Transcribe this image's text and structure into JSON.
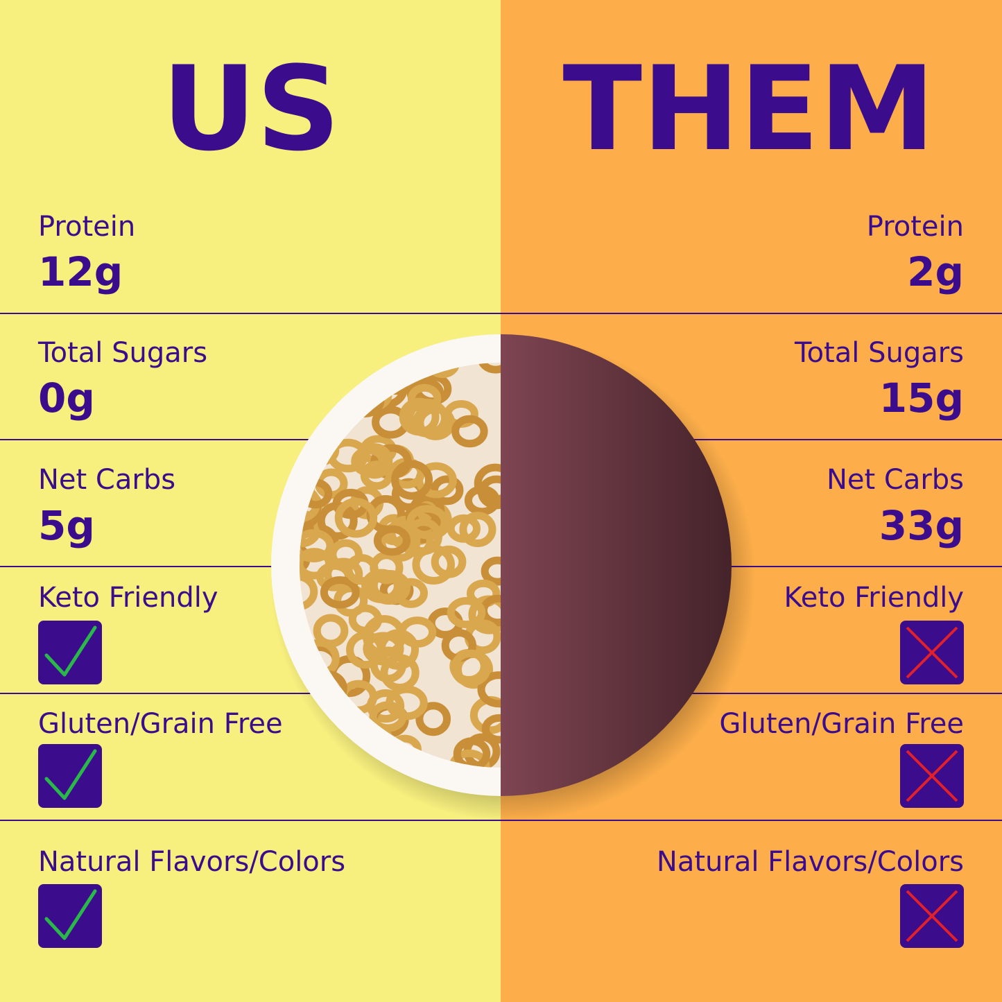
{
  "us": {
    "title": "US",
    "rows": [
      {
        "label": "Protein",
        "value": "12g"
      },
      {
        "label": "Total Sugars",
        "value": "0g"
      },
      {
        "label": "Net Carbs",
        "value": "5g"
      },
      {
        "label": "Keto Friendly"
      },
      {
        "label": "Gluten/Grain Free"
      },
      {
        "label": "Natural Flavors/Colors"
      }
    ]
  },
  "them": {
    "title": "THEM",
    "rows": [
      {
        "label": "Protein",
        "value": "2g"
      },
      {
        "label": "Total Sugars",
        "value": "15g"
      },
      {
        "label": "Net Carbs",
        "value": "33g"
      },
      {
        "label": "Keto Friendly"
      },
      {
        "label": "Gluten/Grain Free"
      },
      {
        "label": "Natural Flavors/Colors"
      }
    ]
  }
}
